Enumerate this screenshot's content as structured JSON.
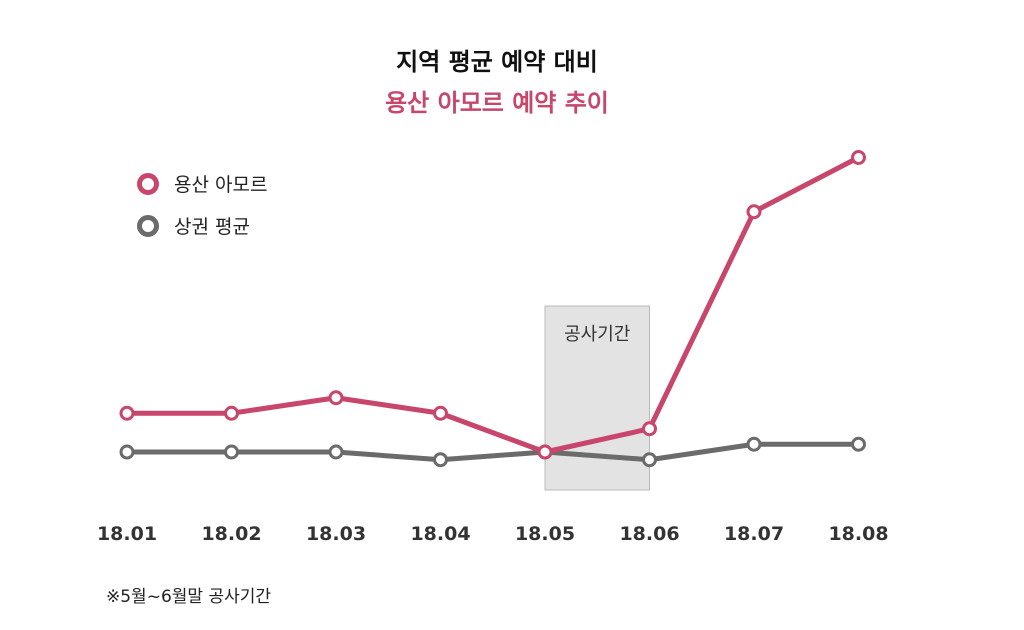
{
  "title": {
    "line1": "지역 평균 예약 대비",
    "line2": "용산 아모르 예약 추이"
  },
  "note": "※5월~6월말 공사기간",
  "chart_data": {
    "type": "line",
    "categories": [
      "18.01",
      "18.02",
      "18.03",
      "18.04",
      "18.05",
      "18.06",
      "18.07",
      "18.08"
    ],
    "series": [
      {
        "name": "용산 아모르",
        "values": [
          5,
          5,
          7,
          5,
          0,
          3,
          31,
          38
        ],
        "color": "#c8466b"
      },
      {
        "name": "상권 평균",
        "values": [
          0,
          0,
          0,
          -1,
          0,
          -1,
          1,
          1
        ],
        "color": "#6b6b6b"
      }
    ],
    "shaded_band": {
      "label": "공사기간",
      "from": "18.05",
      "to": "18.06"
    },
    "title_colors": {
      "line1": "#111111",
      "line2": "#c8466b"
    },
    "legend_position": "top-left",
    "grid": false,
    "axis_line": false
  }
}
